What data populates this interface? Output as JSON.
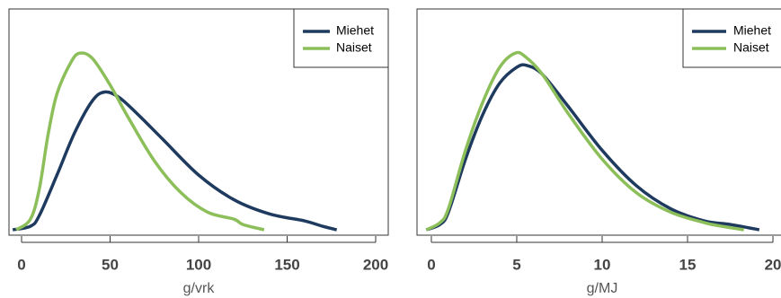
{
  "chart_data": [
    {
      "type": "line",
      "x_label": "g/vrk",
      "xlim": [
        -7.1,
        207.1
      ],
      "ylim": [
        0,
        1.25
      ],
      "xticks": [
        0,
        50,
        100,
        150,
        200
      ],
      "legend": "upper right",
      "series": [
        {
          "name": "Miehet",
          "color": "#1f3a5f",
          "x": [
            -5,
            5,
            10,
            20,
            30,
            40,
            47,
            55,
            65,
            80,
            100,
            120,
            140,
            160,
            170,
            178
          ],
          "values": [
            0,
            0.02,
            0.08,
            0.31,
            0.55,
            0.73,
            0.78,
            0.75,
            0.66,
            0.51,
            0.31,
            0.17,
            0.09,
            0.05,
            0.02,
            0
          ]
        },
        {
          "name": "Naiset",
          "color": "#8cbf5a",
          "x": [
            -3,
            5,
            10,
            15,
            20,
            28,
            33,
            40,
            50,
            60,
            75,
            90,
            105,
            120,
            125,
            137
          ],
          "values": [
            0,
            0.06,
            0.23,
            0.54,
            0.77,
            0.95,
            1.0,
            0.97,
            0.82,
            0.64,
            0.39,
            0.21,
            0.1,
            0.06,
            0.03,
            0
          ]
        }
      ]
    },
    {
      "type": "line",
      "x_label": "g/MJ",
      "xlim": [
        -0.84,
        20.63
      ],
      "ylim": [
        0,
        1.25
      ],
      "xticks": [
        0,
        5,
        10,
        15,
        20
      ],
      "legend": "upper right",
      "series": [
        {
          "name": "Miehet",
          "color": "#1f3a5f",
          "x": [
            -0.3,
            0.5,
            1,
            2,
            3,
            4,
            5,
            5.6,
            6.5,
            8,
            10,
            12,
            14,
            16,
            17.5,
            19.2
          ],
          "values": [
            0,
            0.03,
            0.1,
            0.4,
            0.65,
            0.83,
            0.92,
            0.93,
            0.88,
            0.7,
            0.45,
            0.25,
            0.12,
            0.05,
            0.03,
            0
          ]
        },
        {
          "name": "Naiset",
          "color": "#8cbf5a",
          "x": [
            -0.3,
            0.5,
            1,
            2,
            3,
            4,
            4.9,
            5.5,
            6.5,
            8,
            10,
            12,
            14,
            16,
            17,
            18.3
          ],
          "values": [
            0,
            0.04,
            0.12,
            0.45,
            0.72,
            0.92,
            1.0,
            0.98,
            0.88,
            0.66,
            0.4,
            0.21,
            0.1,
            0.04,
            0.02,
            0
          ]
        }
      ]
    }
  ]
}
